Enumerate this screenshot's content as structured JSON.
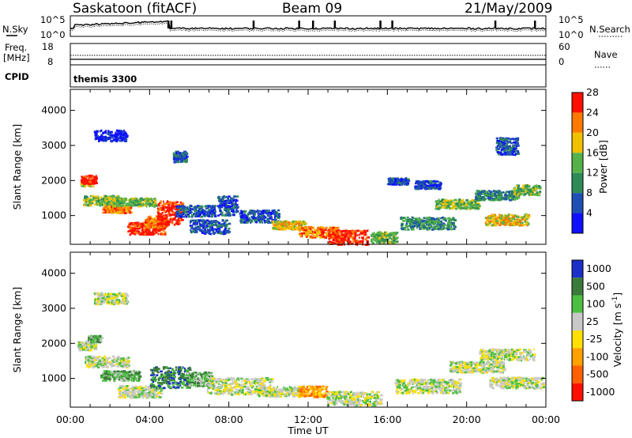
{
  "header": {
    "station": "Saskatoon (fitACF)",
    "beam": "Beam 09",
    "date": "21/May/2009"
  },
  "strips": {
    "nsky_label": "N.Sky",
    "nsearch_label": "N.Search",
    "nsky_ticks": [
      "10^5",
      "10^0"
    ],
    "freq_label": "Freq.",
    "freq_unit": "[MHz]",
    "freq_ticks": [
      "18",
      "8"
    ],
    "nave_label": "Nave",
    "nave_ticks": [
      "60",
      "0"
    ],
    "cpid_label": "CPID",
    "cpid_value": "themis 3300"
  },
  "x_axis": {
    "label": "Time UT",
    "ticks": [
      "00:00",
      "04:00",
      "08:00",
      "12:00",
      "16:00",
      "20:00",
      "00:00"
    ]
  },
  "chart_data": [
    {
      "type": "heatmap",
      "panel": "power",
      "xlabel": "Time UT",
      "ylabel": "Slant Range [km]",
      "xlim_hours": [
        0,
        24
      ],
      "ylim": [
        180,
        4600
      ],
      "y_ticks": [
        1000,
        2000,
        3000,
        4000
      ],
      "colorbar_label": "Power [dB]",
      "colorbar_ticks": [
        "4",
        "8",
        "12",
        "16",
        "20",
        "24",
        "28"
      ],
      "colors": [
        "#1010ff",
        "#1f4fb4",
        "#2e8b57",
        "#55b24a",
        "#f0c000",
        "#ff7a00",
        "#ff1000"
      ],
      "blobs": [
        {
          "t": 0.8,
          "r": 1950,
          "dt": 0.6,
          "dr": 120,
          "level": 4
        },
        {
          "t": 0.9,
          "r": 2050,
          "dt": 0.7,
          "dr": 150,
          "level": 6
        },
        {
          "t": 1.5,
          "r": 1450,
          "dt": 1.6,
          "dr": 180,
          "level": 3
        },
        {
          "t": 2.3,
          "r": 1200,
          "dt": 1.3,
          "dr": 130,
          "level": 5
        },
        {
          "t": 3.2,
          "r": 1400,
          "dt": 2.0,
          "dr": 150,
          "level": 3
        },
        {
          "t": 3.8,
          "r": 650,
          "dt": 1.7,
          "dr": 220,
          "level": 6
        },
        {
          "t": 4.3,
          "r": 850,
          "dt": 1.0,
          "dr": 200,
          "level": 5
        },
        {
          "t": 5.0,
          "r": 1100,
          "dt": 1.2,
          "dr": 420,
          "level": 6
        },
        {
          "t": 6.3,
          "r": 1150,
          "dt": 1.8,
          "dr": 200,
          "level": 1
        },
        {
          "t": 7.0,
          "r": 700,
          "dt": 1.8,
          "dr": 250,
          "level": 1
        },
        {
          "t": 7.9,
          "r": 1300,
          "dt": 0.9,
          "dr": 350,
          "level": 1
        },
        {
          "t": 9.5,
          "r": 1000,
          "dt": 1.8,
          "dr": 220,
          "level": 1
        },
        {
          "t": 11.0,
          "r": 750,
          "dt": 1.5,
          "dr": 150,
          "level": 4
        },
        {
          "t": 12.5,
          "r": 550,
          "dt": 1.8,
          "dr": 200,
          "level": 5
        },
        {
          "t": 14.0,
          "r": 400,
          "dt": 1.8,
          "dr": 260,
          "level": 6
        },
        {
          "t": 15.8,
          "r": 400,
          "dt": 1.2,
          "dr": 200,
          "level": 3
        },
        {
          "t": 18.0,
          "r": 800,
          "dt": 2.5,
          "dr": 220,
          "level": 2
        },
        {
          "t": 19.5,
          "r": 1350,
          "dt": 2.0,
          "dr": 170,
          "level": 3
        },
        {
          "t": 21.5,
          "r": 1600,
          "dt": 2.0,
          "dr": 170,
          "level": 2
        },
        {
          "t": 22.0,
          "r": 900,
          "dt": 2.0,
          "dr": 200,
          "level": 4
        },
        {
          "t": 23.0,
          "r": 1750,
          "dt": 1.2,
          "dr": 180,
          "level": 3
        },
        {
          "t": 18.0,
          "r": 1900,
          "dt": 1.2,
          "dr": 150,
          "level": 1
        },
        {
          "t": 16.5,
          "r": 2000,
          "dt": 1.0,
          "dr": 120,
          "level": 1
        },
        {
          "t": 2.0,
          "r": 3300,
          "dt": 1.5,
          "dr": 200,
          "level": 0
        },
        {
          "t": 5.5,
          "r": 2700,
          "dt": 0.6,
          "dr": 200,
          "level": 1
        },
        {
          "t": 22.0,
          "r": 3000,
          "dt": 1.0,
          "dr": 300,
          "level": 1
        }
      ]
    },
    {
      "type": "heatmap",
      "panel": "velocity",
      "xlabel": "Time UT",
      "ylabel": "Slant Range [km]",
      "xlim_hours": [
        0,
        24
      ],
      "ylim": [
        180,
        4600
      ],
      "y_ticks": [
        1000,
        2000,
        3000,
        4000
      ],
      "colorbar_label": "Velocity [m s^-1]",
      "colorbar_ticks": [
        "1000",
        "500",
        "100",
        "25",
        "-25",
        "-100",
        "-500",
        "-1000"
      ],
      "colors": [
        "#1a30c8",
        "#3a7a3a",
        "#4cc040",
        "#c8c8c8",
        "#ffe000",
        "#ffa000",
        "#ff6000",
        "#ff1000"
      ],
      "blobs": [
        {
          "t": 0.8,
          "r": 1950,
          "dt": 0.8,
          "dr": 160,
          "level": 3
        },
        {
          "t": 1.2,
          "r": 2150,
          "dt": 0.6,
          "dr": 120,
          "level": 2
        },
        {
          "t": 1.8,
          "r": 1500,
          "dt": 2.0,
          "dr": 200,
          "level": 3
        },
        {
          "t": 2.5,
          "r": 1100,
          "dt": 1.8,
          "dr": 180,
          "level": 2
        },
        {
          "t": 3.5,
          "r": 650,
          "dt": 2.0,
          "dr": 220,
          "level": 3
        },
        {
          "t": 5.0,
          "r": 1050,
          "dt": 1.8,
          "dr": 380,
          "level": 1
        },
        {
          "t": 6.5,
          "r": 1000,
          "dt": 1.2,
          "dr": 250,
          "level": 2
        },
        {
          "t": 8.5,
          "r": 800,
          "dt": 3.0,
          "dr": 300,
          "level": 3
        },
        {
          "t": 10.5,
          "r": 650,
          "dt": 2.0,
          "dr": 180,
          "level": 3
        },
        {
          "t": 12.2,
          "r": 650,
          "dt": 1.3,
          "dr": 200,
          "level": 5
        },
        {
          "t": 14.3,
          "r": 450,
          "dt": 2.5,
          "dr": 250,
          "level": 3
        },
        {
          "t": 18.0,
          "r": 800,
          "dt": 3.0,
          "dr": 250,
          "level": 3
        },
        {
          "t": 20.5,
          "r": 1350,
          "dt": 2.5,
          "dr": 200,
          "level": 3
        },
        {
          "t": 22.0,
          "r": 1700,
          "dt": 2.5,
          "dr": 200,
          "level": 3
        },
        {
          "t": 22.5,
          "r": 900,
          "dt": 2.5,
          "dr": 200,
          "level": 3
        },
        {
          "t": 2.0,
          "r": 3300,
          "dt": 1.5,
          "dr": 200,
          "level": 3
        }
      ]
    }
  ]
}
